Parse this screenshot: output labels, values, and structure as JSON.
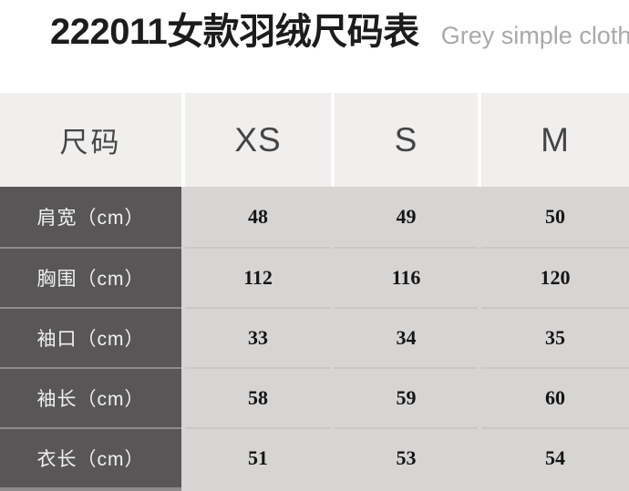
{
  "header": {
    "title": "222011女款羽绒尺码表",
    "subtitle": "Grey simple cloth"
  },
  "table": {
    "size_label": "尺码",
    "sizes": [
      "XS",
      "S",
      "M"
    ],
    "rows": [
      {
        "label": "肩宽（cm）",
        "values": [
          "48",
          "49",
          "50"
        ]
      },
      {
        "label": "胸围（cm）",
        "values": [
          "112",
          "116",
          "120"
        ]
      },
      {
        "label": "袖口（cm）",
        "values": [
          "33",
          "34",
          "35"
        ]
      },
      {
        "label": "袖长（cm）",
        "values": [
          "58",
          "59",
          "60"
        ]
      },
      {
        "label": "衣长（cm）",
        "values": [
          "51",
          "53",
          "54"
        ]
      }
    ]
  },
  "chart_data": {
    "type": "table",
    "title": "222011女款羽绒尺码表",
    "subtitle": "Grey simple cloth",
    "columns": [
      "尺码",
      "XS",
      "S",
      "M"
    ],
    "rows": [
      [
        "肩宽（cm）",
        48,
        49,
        50
      ],
      [
        "胸围（cm）",
        112,
        116,
        120
      ],
      [
        "袖口（cm）",
        33,
        34,
        35
      ],
      [
        "袖长（cm）",
        58,
        59,
        60
      ],
      [
        "衣长（cm）",
        51,
        53,
        54
      ]
    ],
    "units": "cm",
    "layout": {
      "header_position": "top",
      "label_column_position": "left",
      "grid": "row-dividers-only"
    }
  },
  "colors": {
    "title_text": "#1c1c1c",
    "subtitle_text": "#a9a9a9",
    "header_bg": "#f0efee",
    "header_text": "#454545",
    "label_cell_bg": "#585656",
    "label_cell_text": "#f1f0f0",
    "value_area_bg": "#d7d5d4",
    "value_text": "#151515",
    "row_divider_light": "#c9c8c7",
    "row_divider_dark": "#8d8b8b"
  }
}
